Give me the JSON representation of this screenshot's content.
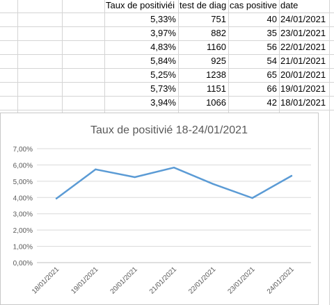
{
  "sheet": {
    "headers": [
      "Taux de positiviéi",
      "test de diag",
      "cas positive",
      "date"
    ],
    "rows": [
      [
        "5,33%",
        "751",
        "40",
        "24/01/2021"
      ],
      [
        "3,97%",
        "882",
        "35",
        "23/01/2021"
      ],
      [
        "4,83%",
        "1160",
        "56",
        "22/01/2021"
      ],
      [
        "5,84%",
        "925",
        "54",
        "21/01/2021"
      ],
      [
        "5,25%",
        "1238",
        "65",
        "20/01/2021"
      ],
      [
        "5,73%",
        "1151",
        "66",
        "19/01/2021"
      ],
      [
        "3,94%",
        "1066",
        "42",
        "18/01/2021"
      ]
    ]
  },
  "chart_data": {
    "type": "line",
    "title": "Taux de positivié 18-24/01/2021",
    "xlabel": "",
    "ylabel": "",
    "categories": [
      "18/01/2021",
      "19/01/2021",
      "20/01/2021",
      "21/01/2021",
      "22/01/2021",
      "23/01/2021",
      "24/01/2021"
    ],
    "series": [
      {
        "values": [
          3.94,
          5.73,
          5.25,
          5.84,
          4.83,
          3.97,
          5.33
        ]
      }
    ],
    "yticks": [
      "0,00%",
      "1,00%",
      "2,00%",
      "3,00%",
      "4,00%",
      "5,00%",
      "6,00%",
      "7,00%"
    ],
    "ylim": [
      0,
      7
    ],
    "grid": true,
    "legend": "none",
    "line_color": "#5b9bd5",
    "grid_color": "#d9d9d9",
    "text_color": "#595959"
  }
}
